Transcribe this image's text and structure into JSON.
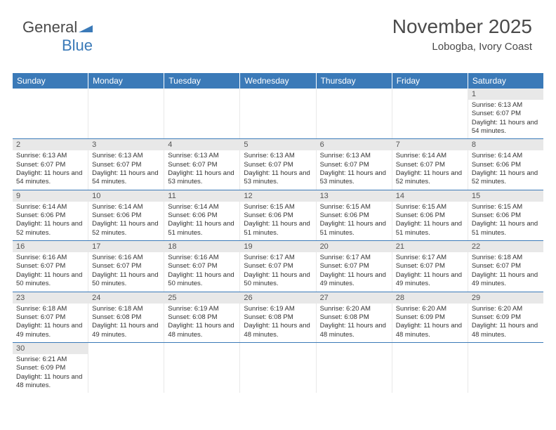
{
  "logo": {
    "text1": "General",
    "text2": "Blue",
    "triangle_color": "#3b7ab8"
  },
  "title": "November 2025",
  "location": "Lobogba, Ivory Coast",
  "header_bg": "#3b7ab8",
  "header_fg": "#ffffff",
  "daynum_bg": "#e8e8e8",
  "week_border": "#3b7ab8",
  "days_of_week": [
    "Sunday",
    "Monday",
    "Tuesday",
    "Wednesday",
    "Thursday",
    "Friday",
    "Saturday"
  ],
  "weeks": [
    [
      null,
      null,
      null,
      null,
      null,
      null,
      {
        "n": "1",
        "sunrise": "Sunrise: 6:13 AM",
        "sunset": "Sunset: 6:07 PM",
        "daylight": "Daylight: 11 hours and 54 minutes."
      }
    ],
    [
      {
        "n": "2",
        "sunrise": "Sunrise: 6:13 AM",
        "sunset": "Sunset: 6:07 PM",
        "daylight": "Daylight: 11 hours and 54 minutes."
      },
      {
        "n": "3",
        "sunrise": "Sunrise: 6:13 AM",
        "sunset": "Sunset: 6:07 PM",
        "daylight": "Daylight: 11 hours and 54 minutes."
      },
      {
        "n": "4",
        "sunrise": "Sunrise: 6:13 AM",
        "sunset": "Sunset: 6:07 PM",
        "daylight": "Daylight: 11 hours and 53 minutes."
      },
      {
        "n": "5",
        "sunrise": "Sunrise: 6:13 AM",
        "sunset": "Sunset: 6:07 PM",
        "daylight": "Daylight: 11 hours and 53 minutes."
      },
      {
        "n": "6",
        "sunrise": "Sunrise: 6:13 AM",
        "sunset": "Sunset: 6:07 PM",
        "daylight": "Daylight: 11 hours and 53 minutes."
      },
      {
        "n": "7",
        "sunrise": "Sunrise: 6:14 AM",
        "sunset": "Sunset: 6:07 PM",
        "daylight": "Daylight: 11 hours and 52 minutes."
      },
      {
        "n": "8",
        "sunrise": "Sunrise: 6:14 AM",
        "sunset": "Sunset: 6:06 PM",
        "daylight": "Daylight: 11 hours and 52 minutes."
      }
    ],
    [
      {
        "n": "9",
        "sunrise": "Sunrise: 6:14 AM",
        "sunset": "Sunset: 6:06 PM",
        "daylight": "Daylight: 11 hours and 52 minutes."
      },
      {
        "n": "10",
        "sunrise": "Sunrise: 6:14 AM",
        "sunset": "Sunset: 6:06 PM",
        "daylight": "Daylight: 11 hours and 52 minutes."
      },
      {
        "n": "11",
        "sunrise": "Sunrise: 6:14 AM",
        "sunset": "Sunset: 6:06 PM",
        "daylight": "Daylight: 11 hours and 51 minutes."
      },
      {
        "n": "12",
        "sunrise": "Sunrise: 6:15 AM",
        "sunset": "Sunset: 6:06 PM",
        "daylight": "Daylight: 11 hours and 51 minutes."
      },
      {
        "n": "13",
        "sunrise": "Sunrise: 6:15 AM",
        "sunset": "Sunset: 6:06 PM",
        "daylight": "Daylight: 11 hours and 51 minutes."
      },
      {
        "n": "14",
        "sunrise": "Sunrise: 6:15 AM",
        "sunset": "Sunset: 6:06 PM",
        "daylight": "Daylight: 11 hours and 51 minutes."
      },
      {
        "n": "15",
        "sunrise": "Sunrise: 6:15 AM",
        "sunset": "Sunset: 6:06 PM",
        "daylight": "Daylight: 11 hours and 51 minutes."
      }
    ],
    [
      {
        "n": "16",
        "sunrise": "Sunrise: 6:16 AM",
        "sunset": "Sunset: 6:07 PM",
        "daylight": "Daylight: 11 hours and 50 minutes."
      },
      {
        "n": "17",
        "sunrise": "Sunrise: 6:16 AM",
        "sunset": "Sunset: 6:07 PM",
        "daylight": "Daylight: 11 hours and 50 minutes."
      },
      {
        "n": "18",
        "sunrise": "Sunrise: 6:16 AM",
        "sunset": "Sunset: 6:07 PM",
        "daylight": "Daylight: 11 hours and 50 minutes."
      },
      {
        "n": "19",
        "sunrise": "Sunrise: 6:17 AM",
        "sunset": "Sunset: 6:07 PM",
        "daylight": "Daylight: 11 hours and 50 minutes."
      },
      {
        "n": "20",
        "sunrise": "Sunrise: 6:17 AM",
        "sunset": "Sunset: 6:07 PM",
        "daylight": "Daylight: 11 hours and 49 minutes."
      },
      {
        "n": "21",
        "sunrise": "Sunrise: 6:17 AM",
        "sunset": "Sunset: 6:07 PM",
        "daylight": "Daylight: 11 hours and 49 minutes."
      },
      {
        "n": "22",
        "sunrise": "Sunrise: 6:18 AM",
        "sunset": "Sunset: 6:07 PM",
        "daylight": "Daylight: 11 hours and 49 minutes."
      }
    ],
    [
      {
        "n": "23",
        "sunrise": "Sunrise: 6:18 AM",
        "sunset": "Sunset: 6:07 PM",
        "daylight": "Daylight: 11 hours and 49 minutes."
      },
      {
        "n": "24",
        "sunrise": "Sunrise: 6:18 AM",
        "sunset": "Sunset: 6:08 PM",
        "daylight": "Daylight: 11 hours and 49 minutes."
      },
      {
        "n": "25",
        "sunrise": "Sunrise: 6:19 AM",
        "sunset": "Sunset: 6:08 PM",
        "daylight": "Daylight: 11 hours and 48 minutes."
      },
      {
        "n": "26",
        "sunrise": "Sunrise: 6:19 AM",
        "sunset": "Sunset: 6:08 PM",
        "daylight": "Daylight: 11 hours and 48 minutes."
      },
      {
        "n": "27",
        "sunrise": "Sunrise: 6:20 AM",
        "sunset": "Sunset: 6:08 PM",
        "daylight": "Daylight: 11 hours and 48 minutes."
      },
      {
        "n": "28",
        "sunrise": "Sunrise: 6:20 AM",
        "sunset": "Sunset: 6:09 PM",
        "daylight": "Daylight: 11 hours and 48 minutes."
      },
      {
        "n": "29",
        "sunrise": "Sunrise: 6:20 AM",
        "sunset": "Sunset: 6:09 PM",
        "daylight": "Daylight: 11 hours and 48 minutes."
      }
    ],
    [
      {
        "n": "30",
        "sunrise": "Sunrise: 6:21 AM",
        "sunset": "Sunset: 6:09 PM",
        "daylight": "Daylight: 11 hours and 48 minutes."
      },
      null,
      null,
      null,
      null,
      null,
      null
    ]
  ]
}
